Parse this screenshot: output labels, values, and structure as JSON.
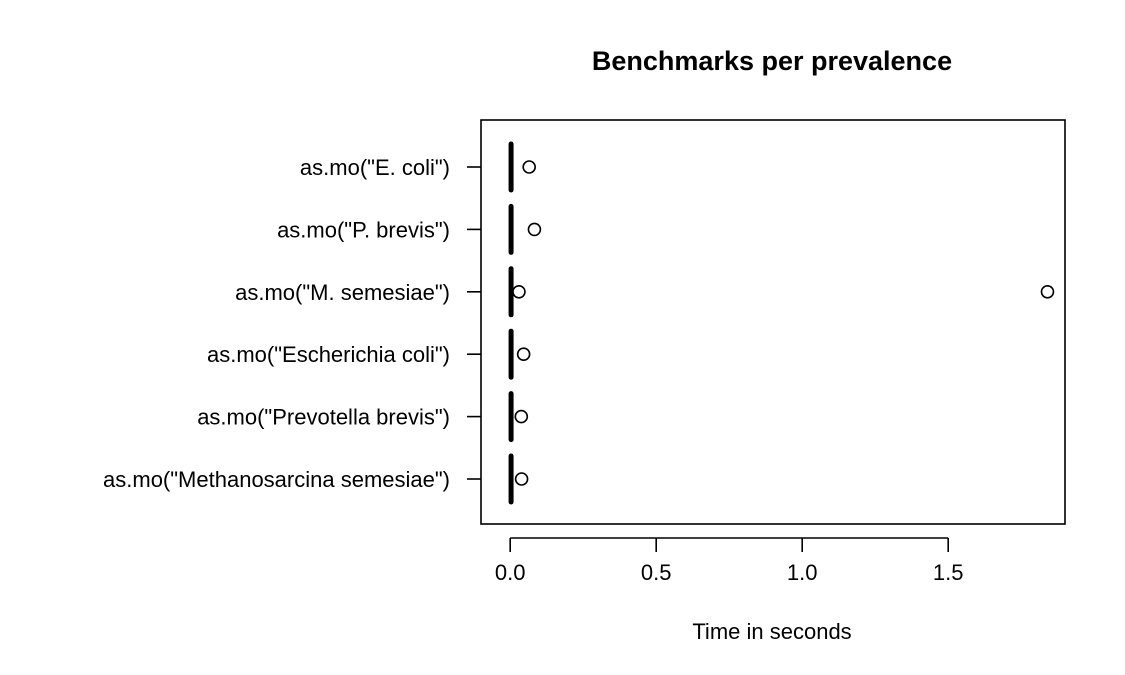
{
  "chart_data": {
    "type": "boxplot",
    "orientation": "horizontal",
    "title": "Benchmarks per prevalence",
    "xlabel": "Time in seconds",
    "ylabel": "",
    "xlim": [
      -0.1,
      1.9
    ],
    "xticks": [
      0.0,
      0.5,
      1.0,
      1.5
    ],
    "xtick_labels": [
      "0.0",
      "0.5",
      "1.0",
      "1.5"
    ],
    "grid": false,
    "categories": [
      "as.mo(\"E. coli\")",
      "as.mo(\"P. brevis\")",
      "as.mo(\"M. semesiae\")",
      "as.mo(\"Escherichia coli\")",
      "as.mo(\"Prevotella brevis\")",
      "as.mo(\"Methanosarcina semesiae\")"
    ],
    "medians": [
      0.003,
      0.003,
      0.003,
      0.003,
      0.003,
      0.003
    ],
    "outliers": [
      [
        0.065
      ],
      [
        0.083
      ],
      [
        0.03,
        1.84
      ],
      [
        0.046
      ],
      [
        0.038
      ],
      [
        0.039
      ]
    ]
  }
}
